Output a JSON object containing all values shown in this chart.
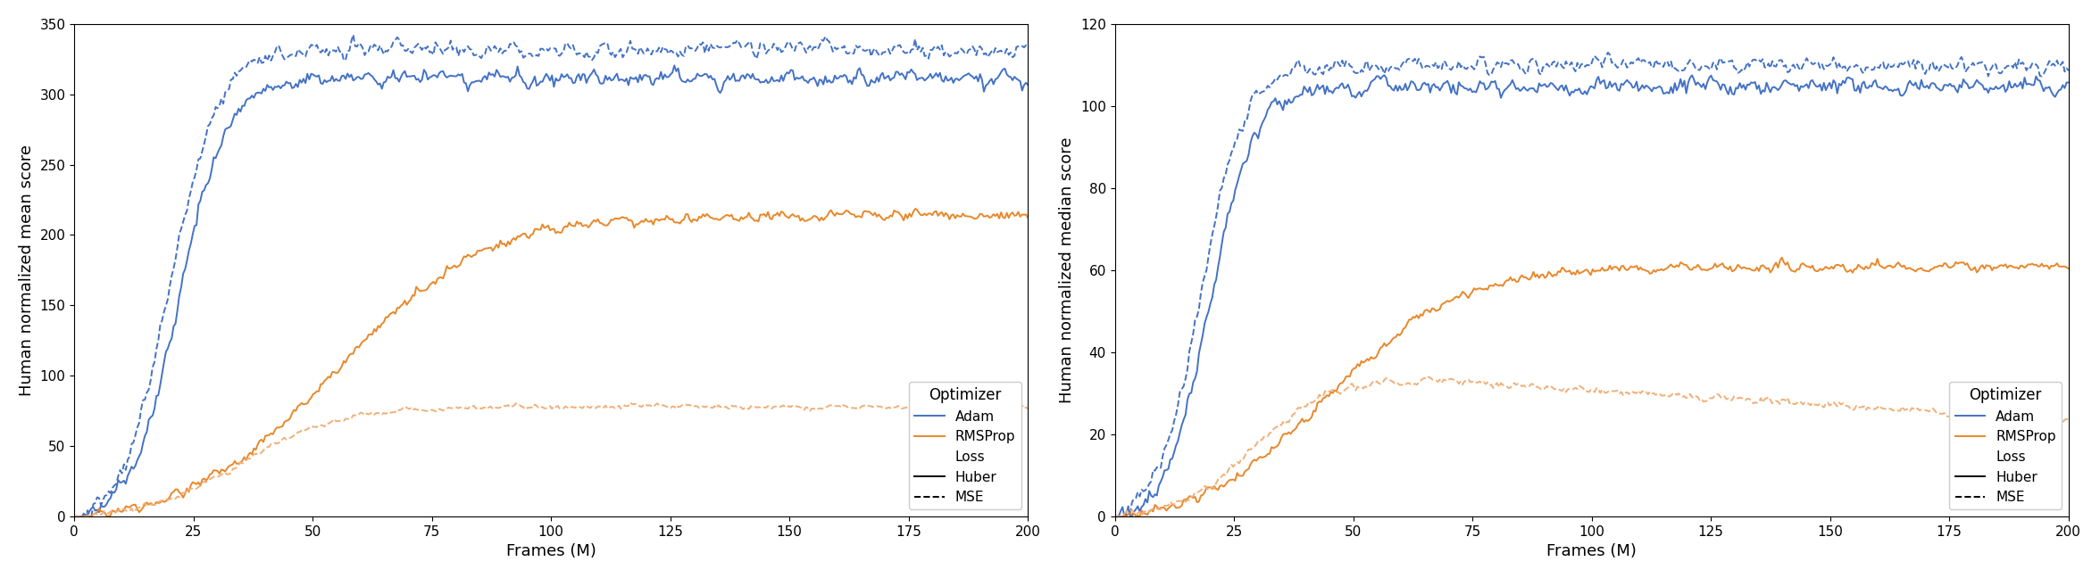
{
  "fig_width": 23.52,
  "fig_height": 6.48,
  "dpi": 100,
  "left_ylabel": "Human normalized mean score",
  "right_ylabel": "Human normalized median score",
  "xlabel": "Frames (M)",
  "xlim": [
    0,
    200
  ],
  "left_ylim": [
    0,
    350
  ],
  "right_ylim": [
    0,
    120
  ],
  "left_yticks": [
    0,
    50,
    100,
    150,
    200,
    250,
    300,
    350
  ],
  "right_yticks": [
    0,
    20,
    40,
    60,
    80,
    100,
    120
  ],
  "xticks": [
    0,
    25,
    50,
    75,
    100,
    125,
    150,
    175,
    200
  ],
  "color_blue": "#4472c4",
  "color_orange": "#e8882a",
  "color_orange_mse": "#f0b07a",
  "legend_title": "Optimizer",
  "legend_entries_optimizer": [
    "Adam",
    "RMSProp"
  ],
  "legend_entries_loss": [
    "Loss",
    "Huber",
    "MSE"
  ],
  "line_width": 1.4,
  "n_points": 500
}
